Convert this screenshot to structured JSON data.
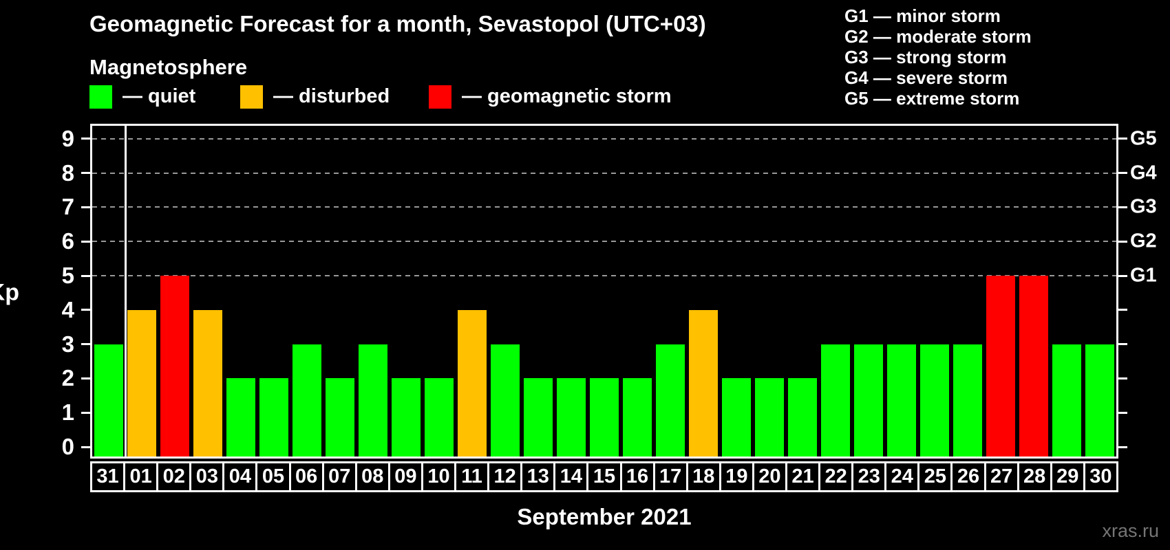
{
  "header": {
    "title": "Geomagnetic Forecast for a month, Sevastopol (UTC+03)",
    "subtitle": "Magnetosphere"
  },
  "colors": {
    "quiet": "#00ff00",
    "disturbed": "#ffc000",
    "storm": "#ff0000",
    "grid": "#999999",
    "frame": "#ffffff",
    "watermark": "#757575",
    "background": "#000000",
    "text": "#ffffff"
  },
  "legend": {
    "items": [
      {
        "status": "quiet",
        "label": "— quiet"
      },
      {
        "status": "disturbed",
        "label": "— disturbed"
      },
      {
        "status": "storm",
        "label": "— geomagnetic storm"
      }
    ]
  },
  "storm_scale": {
    "items": [
      "G1 — minor storm",
      "G2 — moderate storm",
      "G3 — strong storm",
      "G4 — severe storm",
      "G5 — extreme storm"
    ]
  },
  "chart_data": {
    "type": "bar",
    "title": "Geomagnetic Forecast for a month, Sevastopol (UTC+03)",
    "xlabel": "September 2021",
    "ylabel": "Kp",
    "ylim": [
      0,
      9.4
    ],
    "grid": "horizontal dashed lines at Kp 5–9 (G1–G5)",
    "legend_position": "top-left (status colors), top-right (G scale)",
    "categories": [
      "31",
      "01",
      "02",
      "03",
      "04",
      "05",
      "06",
      "07",
      "08",
      "09",
      "10",
      "11",
      "12",
      "13",
      "14",
      "15",
      "16",
      "17",
      "18",
      "19",
      "20",
      "21",
      "22",
      "23",
      "24",
      "25",
      "26",
      "27",
      "28",
      "29",
      "30"
    ],
    "values": [
      3,
      4,
      5,
      4,
      2,
      2,
      3,
      2,
      3,
      2,
      2,
      4,
      3,
      2,
      2,
      2,
      2,
      3,
      4,
      2,
      2,
      2,
      3,
      3,
      3,
      3,
      3,
      5,
      5,
      3,
      3
    ],
    "statuses": [
      "quiet",
      "disturbed",
      "storm",
      "disturbed",
      "quiet",
      "quiet",
      "quiet",
      "quiet",
      "quiet",
      "quiet",
      "quiet",
      "disturbed",
      "quiet",
      "quiet",
      "quiet",
      "quiet",
      "quiet",
      "quiet",
      "disturbed",
      "quiet",
      "quiet",
      "quiet",
      "quiet",
      "quiet",
      "quiet",
      "quiet",
      "quiet",
      "storm",
      "storm",
      "quiet",
      "quiet"
    ],
    "y_ticks": [
      0,
      1,
      2,
      3,
      4,
      5,
      6,
      7,
      8,
      9
    ],
    "right_axis_labels": [
      {
        "value": 5,
        "label": "G1"
      },
      {
        "value": 6,
        "label": "G2"
      },
      {
        "value": 7,
        "label": "G3"
      },
      {
        "value": 8,
        "label": "G4"
      },
      {
        "value": 9,
        "label": "G5"
      }
    ],
    "month_separator_after_category": "31"
  },
  "footer": {
    "watermark": "xras.ru"
  }
}
